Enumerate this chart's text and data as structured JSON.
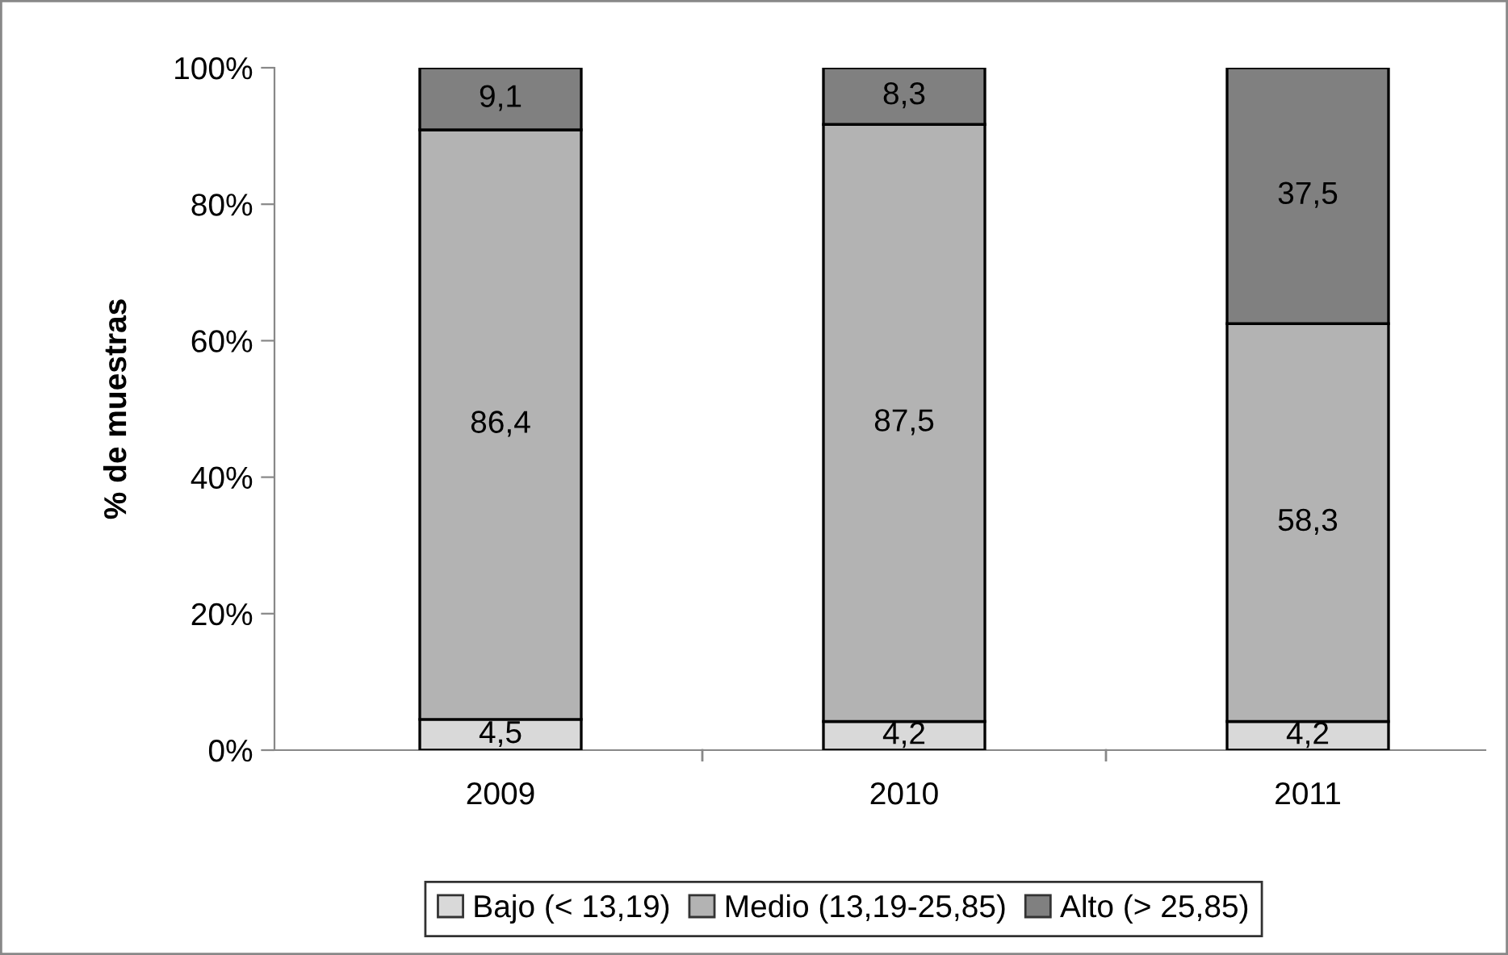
{
  "chart_data": {
    "type": "bar",
    "stacked": true,
    "ylabel": "% de muestras",
    "categories": [
      "2009",
      "2010",
      "2011"
    ],
    "series": [
      {
        "name": "Bajo (< 13,19)",
        "color": "#d9d9d9",
        "values": [
          4.5,
          4.2,
          4.2
        ],
        "value_labels": [
          "4,5",
          "4,2",
          "4,2"
        ]
      },
      {
        "name": "Medio (13,19-25,85)",
        "color": "#b3b3b3",
        "values": [
          86.4,
          87.5,
          58.3
        ],
        "value_labels": [
          "86,4",
          "87,5",
          "58,3"
        ]
      },
      {
        "name": "Alto (> 25,85)",
        "color": "#808080",
        "values": [
          9.1,
          8.3,
          37.5
        ],
        "value_labels": [
          "9,1",
          "8,3",
          "37,5"
        ]
      }
    ],
    "ylim": [
      0,
      100
    ],
    "yticks": [
      {
        "value": 0,
        "label": "0%"
      },
      {
        "value": 20,
        "label": "20%"
      },
      {
        "value": 40,
        "label": "40%"
      },
      {
        "value": 60,
        "label": "60%"
      },
      {
        "value": 80,
        "label": "80%"
      },
      {
        "value": 100,
        "label": "100%"
      }
    ],
    "grid": false,
    "legend": "bottom"
  }
}
